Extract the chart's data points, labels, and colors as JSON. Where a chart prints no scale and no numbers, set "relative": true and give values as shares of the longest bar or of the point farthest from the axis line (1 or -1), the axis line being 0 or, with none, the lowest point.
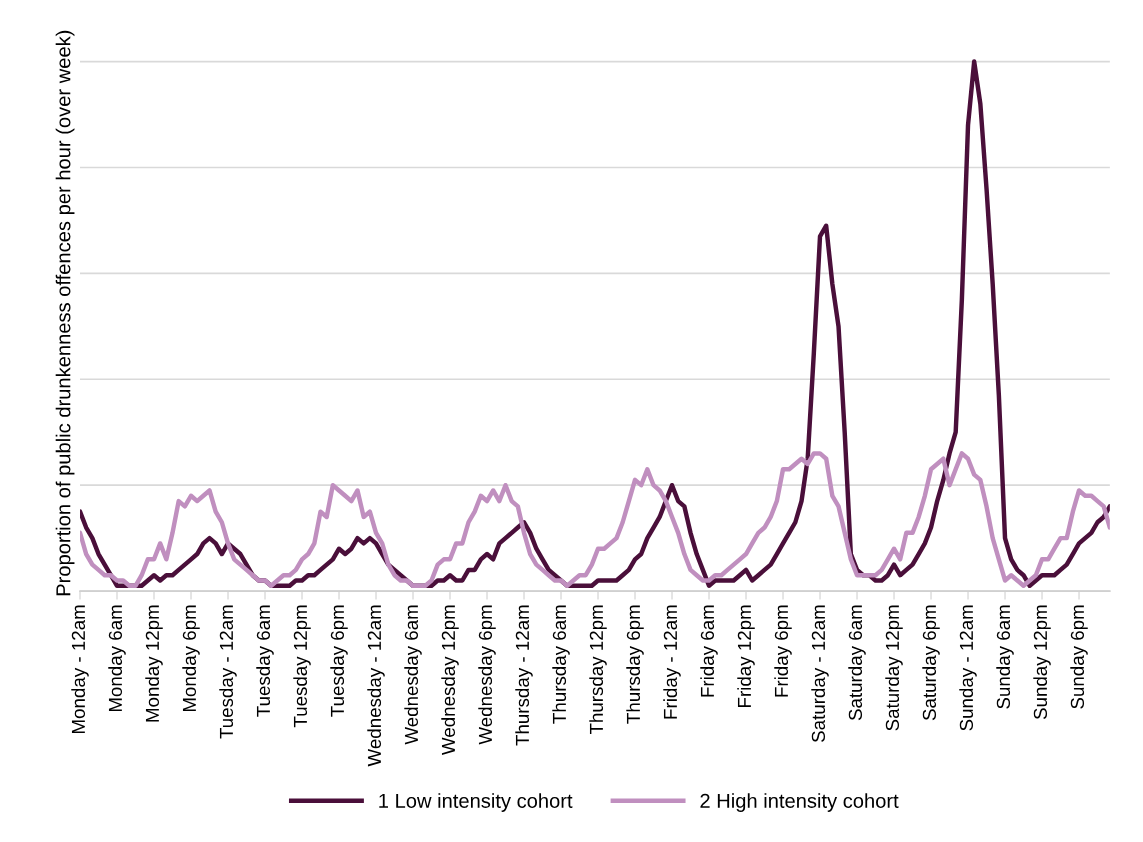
{
  "chart_data": {
    "type": "line",
    "ylabel": "Proportion of public drunkenness offences per hour (over week)",
    "relative": true,
    "grid": "y",
    "legend": "bottom",
    "marker": "none",
    "line_style": "solid",
    "tick_labels": "x",
    "categories": [
      "Monday - 12am",
      null,
      null,
      null,
      null,
      null,
      "Monday 6am",
      null,
      null,
      null,
      null,
      null,
      "Monday 12pm",
      null,
      null,
      null,
      null,
      null,
      "Monday 6pm",
      null,
      null,
      null,
      null,
      null,
      "Tuesday - 12am",
      null,
      null,
      null,
      null,
      null,
      "Tuesday 6am",
      null,
      null,
      null,
      null,
      null,
      "Tuesday 12pm",
      null,
      null,
      null,
      null,
      null,
      "Tuesday 6pm",
      null,
      null,
      null,
      null,
      null,
      "Wednesday - 12am",
      null,
      null,
      null,
      null,
      null,
      "Wednesday 6am",
      null,
      null,
      null,
      null,
      null,
      "Wednesday 12pm",
      null,
      null,
      null,
      null,
      null,
      "Wednesday 6pm",
      null,
      null,
      null,
      null,
      null,
      "Thursday - 12am",
      null,
      null,
      null,
      null,
      null,
      "Thursday 6am",
      null,
      null,
      null,
      null,
      null,
      "Thursday 12pm",
      null,
      null,
      null,
      null,
      null,
      "Thursday 6pm",
      null,
      null,
      null,
      null,
      null,
      "Friday - 12am",
      null,
      null,
      null,
      null,
      null,
      "Friday 6am",
      null,
      null,
      null,
      null,
      null,
      "Friday 12pm",
      null,
      null,
      null,
      null,
      null,
      "Friday 6pm",
      null,
      null,
      null,
      null,
      null,
      "Saturday - 12am",
      null,
      null,
      null,
      null,
      null,
      "Saturday 6am",
      null,
      null,
      null,
      null,
      null,
      "Saturday 12pm",
      null,
      null,
      null,
      null,
      null,
      "Saturday 6pm",
      null,
      null,
      null,
      null,
      null,
      "Sunday - 12am",
      null,
      null,
      null,
      null,
      null,
      "Sunday 6am",
      null,
      null,
      null,
      null,
      null,
      "Sunday 12pm",
      null,
      null,
      null,
      null,
      null,
      "Sunday 6pm",
      null,
      null,
      null,
      null,
      null
    ],
    "series": [
      {
        "name": "1 Low intensity cohort",
        "color": "#4a0f3a",
        "values": [
          0.15,
          0.12,
          0.1,
          0.07,
          0.05,
          0.03,
          0.01,
          0.01,
          0.01,
          0.01,
          0.01,
          0.02,
          0.03,
          0.02,
          0.03,
          0.03,
          0.04,
          0.05,
          0.06,
          0.07,
          0.09,
          0.1,
          0.09,
          0.07,
          0.09,
          0.08,
          0.07,
          0.05,
          0.03,
          0.02,
          0.02,
          0.01,
          0.01,
          0.01,
          0.01,
          0.02,
          0.02,
          0.03,
          0.03,
          0.04,
          0.05,
          0.06,
          0.08,
          0.07,
          0.08,
          0.1,
          0.09,
          0.1,
          0.09,
          0.07,
          0.05,
          0.04,
          0.03,
          0.02,
          0.01,
          0.01,
          0.01,
          0.01,
          0.02,
          0.02,
          0.03,
          0.02,
          0.02,
          0.04,
          0.04,
          0.06,
          0.07,
          0.06,
          0.09,
          0.1,
          0.11,
          0.12,
          0.13,
          0.11,
          0.08,
          0.06,
          0.04,
          0.03,
          0.02,
          0.01,
          0.01,
          0.01,
          0.01,
          0.01,
          0.02,
          0.02,
          0.02,
          0.02,
          0.03,
          0.04,
          0.06,
          0.07,
          0.1,
          0.12,
          0.14,
          0.17,
          0.2,
          0.17,
          0.16,
          0.11,
          0.07,
          0.04,
          0.01,
          0.02,
          0.02,
          0.02,
          0.02,
          0.03,
          0.04,
          0.02,
          0.03,
          0.04,
          0.05,
          0.07,
          0.09,
          0.11,
          0.13,
          0.17,
          0.25,
          0.45,
          0.67,
          0.69,
          0.58,
          0.5,
          0.3,
          0.07,
          0.04,
          0.03,
          0.03,
          0.02,
          0.02,
          0.03,
          0.05,
          0.03,
          0.04,
          0.05,
          0.07,
          0.09,
          0.12,
          0.17,
          0.21,
          0.26,
          0.3,
          0.55,
          0.88,
          1,
          0.92,
          0.76,
          0.58,
          0.37,
          0.1,
          0.06,
          0.04,
          0.03,
          0.01,
          0.02,
          0.03,
          0.03,
          0.03,
          0.04,
          0.05,
          0.07,
          0.09,
          0.1,
          0.11,
          0.13,
          0.14,
          0.16
        ]
      },
      {
        "name": "2 High intensity cohort",
        "color": "#c08fbf",
        "values": [
          0.11,
          0.07,
          0.05,
          0.04,
          0.03,
          0.03,
          0.02,
          0.02,
          0.01,
          0.01,
          0.03,
          0.06,
          0.06,
          0.09,
          0.06,
          0.11,
          0.17,
          0.16,
          0.18,
          0.17,
          0.18,
          0.19,
          0.15,
          0.13,
          0.09,
          0.06,
          0.05,
          0.04,
          0.03,
          0.02,
          0.02,
          0.01,
          0.02,
          0.03,
          0.03,
          0.04,
          0.06,
          0.07,
          0.09,
          0.15,
          0.14,
          0.2,
          0.19,
          0.18,
          0.17,
          0.19,
          0.14,
          0.15,
          0.11,
          0.09,
          0.05,
          0.03,
          0.02,
          0.02,
          0.01,
          0.01,
          0.01,
          0.02,
          0.05,
          0.06,
          0.06,
          0.09,
          0.09,
          0.13,
          0.15,
          0.18,
          0.17,
          0.19,
          0.17,
          0.2,
          0.17,
          0.16,
          0.11,
          0.07,
          0.05,
          0.04,
          0.03,
          0.02,
          0.02,
          0.01,
          0.02,
          0.03,
          0.03,
          0.05,
          0.08,
          0.08,
          0.09,
          0.1,
          0.13,
          0.17,
          0.21,
          0.2,
          0.23,
          0.2,
          0.19,
          0.17,
          0.14,
          0.11,
          0.07,
          0.04,
          0.03,
          0.02,
          0.02,
          0.03,
          0.03,
          0.04,
          0.05,
          0.06,
          0.07,
          0.09,
          0.11,
          0.12,
          0.14,
          0.17,
          0.23,
          0.23,
          0.24,
          0.25,
          0.24,
          0.26,
          0.26,
          0.25,
          0.18,
          0.16,
          0.11,
          0.06,
          0.03,
          0.03,
          0.03,
          0.03,
          0.04,
          0.06,
          0.08,
          0.06,
          0.11,
          0.11,
          0.14,
          0.18,
          0.23,
          0.24,
          0.25,
          0.2,
          0.23,
          0.26,
          0.25,
          0.22,
          0.21,
          0.16,
          0.1,
          0.06,
          0.02,
          0.03,
          0.02,
          0.01,
          0.02,
          0.03,
          0.06,
          0.06,
          0.08,
          0.1,
          0.1,
          0.15,
          0.19,
          0.18,
          0.18,
          0.17,
          0.16,
          0.12
        ]
      }
    ]
  }
}
